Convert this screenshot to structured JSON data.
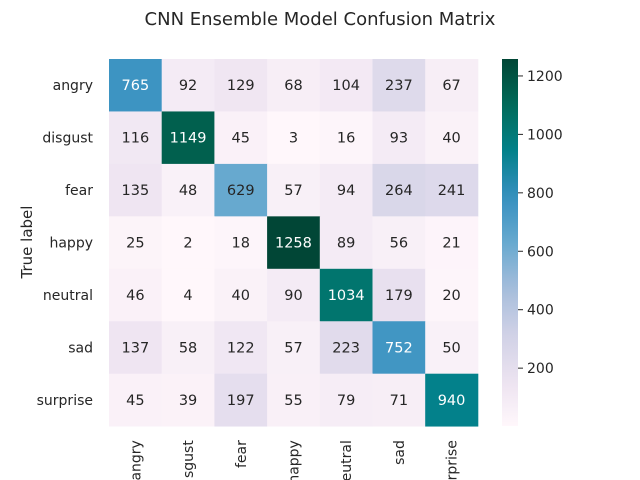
{
  "chart_data": {
    "type": "heatmap",
    "title": "CNN Ensemble Model Confusion Matrix",
    "ylabel": "True label",
    "xlabel": "",
    "x_tick_labels": [
      "angry",
      "sgust",
      "fear",
      "happy",
      "eutral",
      "sad",
      "rprise"
    ],
    "y_tick_labels": [
      "angry",
      "disgust",
      "fear",
      "happy",
      "neutral",
      "sad",
      "surprise"
    ],
    "matrix": [
      [
        765,
        92,
        129,
        68,
        104,
        237,
        67
      ],
      [
        116,
        1149,
        45,
        3,
        16,
        93,
        40
      ],
      [
        135,
        48,
        629,
        57,
        94,
        264,
        241
      ],
      [
        25,
        2,
        18,
        1258,
        89,
        56,
        21
      ],
      [
        46,
        4,
        40,
        90,
        1034,
        179,
        20
      ],
      [
        137,
        58,
        122,
        57,
        223,
        752,
        50
      ],
      [
        45,
        39,
        197,
        55,
        79,
        71,
        940
      ]
    ],
    "colormap": "PuBuGn",
    "colorbar": {
      "ticks": [
        200,
        400,
        600,
        800,
        1000,
        1200
      ],
      "range": [
        2,
        1258
      ]
    }
  }
}
